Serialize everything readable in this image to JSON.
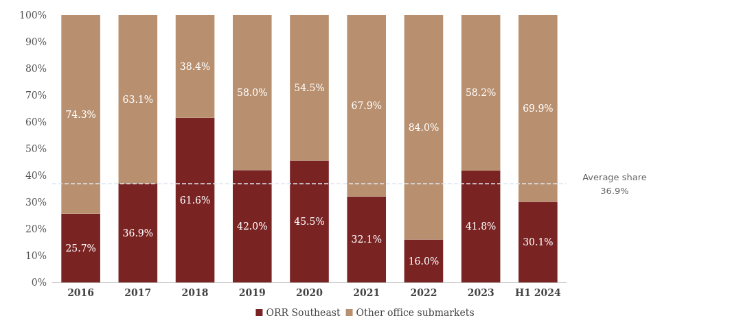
{
  "chart_data": {
    "type": "bar",
    "stacked": true,
    "categories": [
      "2016",
      "2017",
      "2018",
      "2019",
      "2020",
      "2021",
      "2022",
      "2023",
      "H1 2024"
    ],
    "series": [
      {
        "name": "ORR Southeast",
        "color": "#7a2323",
        "values": [
          25.7,
          36.9,
          61.6,
          42.0,
          45.5,
          32.1,
          16.0,
          41.8,
          30.1
        ],
        "value_labels": [
          "25.7%",
          "36.9%",
          "61.6%",
          "42.0%",
          "45.5%",
          "32.1%",
          "16.0%",
          "41.8%",
          "30.1%"
        ]
      },
      {
        "name": "Other office submarkets",
        "color": "#b8906f",
        "values": [
          74.3,
          63.1,
          38.4,
          58.0,
          54.5,
          67.9,
          84.0,
          58.2,
          69.9
        ],
        "value_labels": [
          "74.3%",
          "63.1%",
          "38.4%",
          "58.0%",
          "54.5%",
          "67.9%",
          "84.0%",
          "58.2%",
          "69.9%"
        ]
      }
    ],
    "ylim": [
      0,
      100
    ],
    "yticks": [
      {
        "value": 0,
        "label": "0%"
      },
      {
        "value": 10,
        "label": "10%"
      },
      {
        "value": 20,
        "label": "20%"
      },
      {
        "value": 30,
        "label": "30%"
      },
      {
        "value": 40,
        "label": "40%"
      },
      {
        "value": 50,
        "label": "50%"
      },
      {
        "value": 60,
        "label": "60%"
      },
      {
        "value": 70,
        "label": "70%"
      },
      {
        "value": 80,
        "label": "80%"
      },
      {
        "value": 90,
        "label": "90%"
      },
      {
        "value": 100,
        "label": "100%"
      }
    ],
    "ref_lines": [
      {
        "axis": "y",
        "value": 36.9,
        "label": "Average share\n36.9%",
        "color": "#dfe6ee",
        "line_style": "dashed"
      }
    ],
    "legend": "bottom",
    "grid": false
  }
}
